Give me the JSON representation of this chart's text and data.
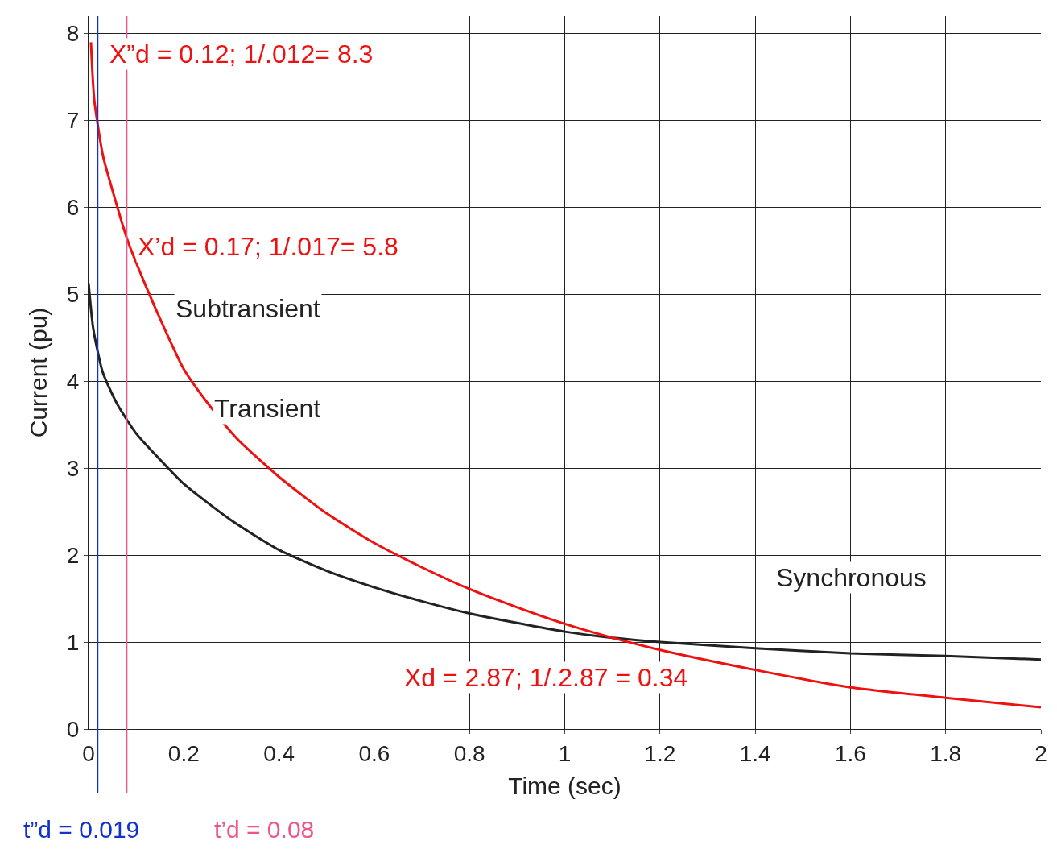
{
  "chart_data": {
    "type": "line",
    "xlabel": "Time (sec)",
    "ylabel": "Current (pu)",
    "series": [
      {
        "color": "#222222",
        "x": [
          0,
          0.01,
          0.03,
          0.06,
          0.1,
          0.15,
          0.2,
          0.3,
          0.4,
          0.5,
          0.6,
          0.7,
          0.8,
          0.9,
          1.0,
          1.1,
          1.2,
          1.4,
          1.6,
          1.8,
          2.0
        ],
        "values": [
          5.13,
          4.6,
          4.1,
          3.74,
          3.4,
          3.1,
          2.82,
          2.4,
          2.06,
          1.82,
          1.63,
          1.47,
          1.33,
          1.22,
          1.12,
          1.05,
          1.0,
          0.93,
          0.87,
          0.84,
          0.8
        ]
      },
      {
        "color": "#ee1111",
        "x": [
          0.005,
          0.012,
          0.03,
          0.05,
          0.082,
          0.12,
          0.16,
          0.2,
          0.25,
          0.31,
          0.4,
          0.5,
          0.6,
          0.7,
          0.8,
          0.9,
          1.0,
          1.1,
          1.2,
          1.4,
          1.6,
          1.8,
          2.0
        ],
        "values": [
          7.9,
          7.24,
          6.6,
          6.2,
          5.62,
          5.1,
          4.6,
          4.14,
          3.75,
          3.35,
          2.9,
          2.48,
          2.14,
          1.86,
          1.61,
          1.4,
          1.21,
          1.05,
          0.91,
          0.68,
          0.48,
          0.36,
          0.25
        ]
      }
    ],
    "xlim": [
      0,
      2
    ],
    "ylim": [
      0,
      8.2
    ],
    "xticks": [
      0,
      0.2,
      0.4,
      0.6,
      0.8,
      1,
      1.2,
      1.4,
      1.6,
      1.8,
      2
    ],
    "yticks": [
      0,
      1,
      2,
      3,
      4,
      5,
      6,
      7,
      8
    ],
    "grid": true,
    "marker": "none",
    "line_style": "solid",
    "ref_lines": [
      {
        "axis": "x",
        "value": 0.019,
        "label": "t”d = 0.019",
        "color": "#1133cc"
      },
      {
        "axis": "x",
        "value": 0.08,
        "label": "t’d = 0.08",
        "color": "#ee5588"
      }
    ],
    "annotations": [
      "X”d = 0.12; 1/.012= 8.3",
      "X’d = 0.17; 1/.017= 5.8",
      "Xd = 2.87; 1/.2.87 = 0.34",
      "Subtransient",
      "Transient",
      "Synchronous"
    ]
  }
}
